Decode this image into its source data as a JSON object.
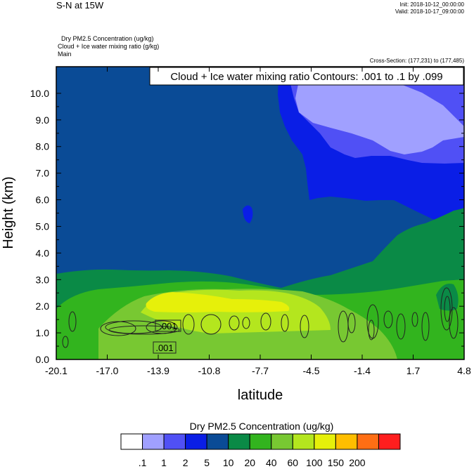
{
  "header": {
    "title": "S-N at 15W",
    "init": "Init: 2018-10-12_00:00:00",
    "valid": "Valid: 2018-10-17_09:00:00",
    "field1": "Dry PM2.5 Concentration   (ug/kg)",
    "field2": "Cloud + Ice water mixing ratio   (g/kg)",
    "field3": "Main",
    "cross_section": "Cross-Section: (177,231) to (177,485)"
  },
  "chart_data": {
    "type": "heatmap",
    "title": "Cloud + Ice water mixing ratio Contours: .001 to .1 by .099",
    "xlabel": "latitude",
    "ylabel": "Height (km)",
    "xlim": [
      -20.1,
      4.8
    ],
    "ylim": [
      0.0,
      11.0
    ],
    "x_ticks": [
      "-20.1",
      "-17.0",
      "-13.9",
      "-10.8",
      "-7.7",
      "-4.5",
      "-1.4",
      "1.7",
      "4.8"
    ],
    "y_ticks": [
      "0.0",
      "1.0",
      "2.0",
      "3.0",
      "4.0",
      "5.0",
      "6.0",
      "7.0",
      "8.0",
      "9.0",
      "10.0"
    ],
    "contour_labels": [
      ".001",
      ".001"
    ],
    "colorbar": {
      "title": "Dry PM2.5 Concentration  (ug/kg)",
      "labels": [
        ".1",
        "1",
        "2",
        "5",
        "10",
        "20",
        "40",
        "60",
        "100",
        "150",
        "200"
      ],
      "colors": [
        "#ffffff",
        "#a0a0ff",
        "#5050f5",
        "#0a1ee6",
        "#0a4b96",
        "#0a8a46",
        "#32b41e",
        "#78c832",
        "#b4e61e",
        "#e6f00a",
        "#ffbe00",
        "#ff6e14",
        "#ff1e1e"
      ]
    },
    "regions": [
      {
        "level": "5-10",
        "color": "#0a4b96"
      },
      {
        "level": "2-5",
        "color": "#0a1ee6"
      },
      {
        "level": "1-2",
        "color": "#5050f5"
      },
      {
        "level": ".1-1",
        "color": "#a0a0ff"
      },
      {
        "level": "10-20",
        "color": "#0a8a46"
      },
      {
        "level": "20-40",
        "color": "#32b41e"
      },
      {
        "level": "40-60",
        "color": "#78c832"
      },
      {
        "level": "60-100",
        "color": "#b4e61e"
      },
      {
        "level": "100-150",
        "color": "#e6f00a"
      }
    ]
  }
}
